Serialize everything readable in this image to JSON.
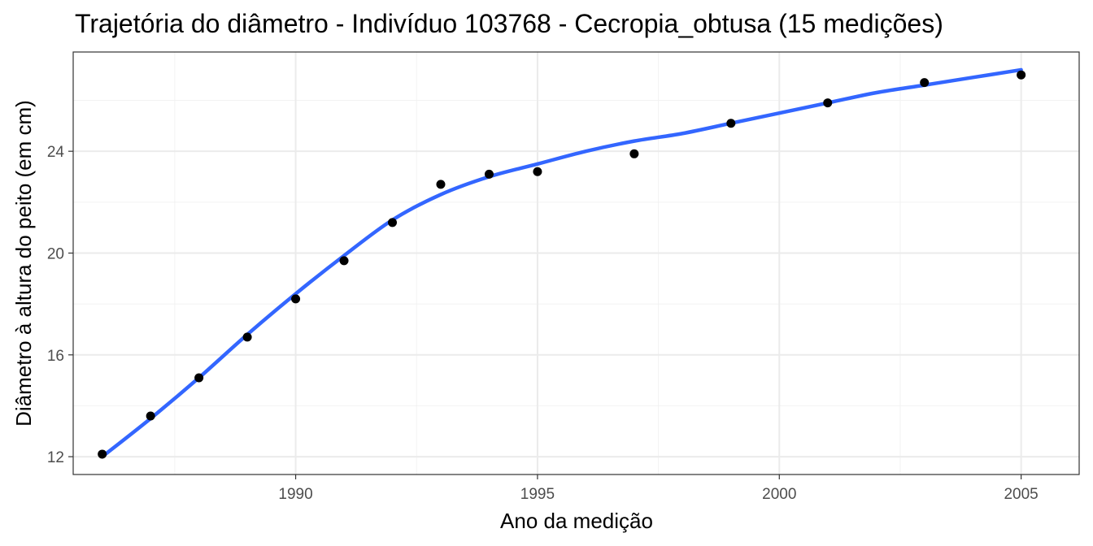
{
  "chart_data": {
    "type": "scatter",
    "title": "Trajetória do diâmetro - Indivíduo 103768 - Cecropia_obtusa (15 medições)",
    "xlabel": "Ano da medição",
    "ylabel": "Diâmetro à altura do peito (em cm)",
    "xlim": [
      1985.4,
      2006.2
    ],
    "ylim": [
      11.3,
      27.9
    ],
    "x_ticks": [
      1990,
      1995,
      2000,
      2005
    ],
    "y_ticks": [
      12,
      16,
      20,
      24
    ],
    "x_tick_labels": [
      "1990",
      "1995",
      "2000",
      "2005"
    ],
    "y_tick_labels": [
      "12",
      "16",
      "20",
      "24"
    ],
    "x_minor": [
      1987.5,
      1992.5,
      1997.5,
      2002.5
    ],
    "y_minor": [
      14,
      18,
      22,
      26
    ],
    "grid": true,
    "series": [
      {
        "kind": "points",
        "color": "#000000",
        "x": [
          1986,
          1987,
          1988,
          1989,
          1990,
          1991,
          1992,
          1993,
          1994,
          1995,
          1997,
          1999,
          2001,
          2003,
          2005
        ],
        "y": [
          12.1,
          13.6,
          15.1,
          16.7,
          18.2,
          19.7,
          21.2,
          22.7,
          23.1,
          23.2,
          23.9,
          25.1,
          25.9,
          26.7,
          27.0
        ]
      },
      {
        "kind": "smooth",
        "color": "#3366ff",
        "x": [
          1986,
          1987,
          1988,
          1989,
          1990,
          1991,
          1992,
          1993,
          1994,
          1995,
          1996,
          1997,
          1998,
          1999,
          2000,
          2001,
          2002,
          2003,
          2004,
          2005
        ],
        "y": [
          12.0,
          13.5,
          15.1,
          16.8,
          18.4,
          19.9,
          21.3,
          22.3,
          23.0,
          23.5,
          24.0,
          24.4,
          24.7,
          25.1,
          25.5,
          25.9,
          26.3,
          26.6,
          26.9,
          27.2
        ]
      }
    ]
  }
}
